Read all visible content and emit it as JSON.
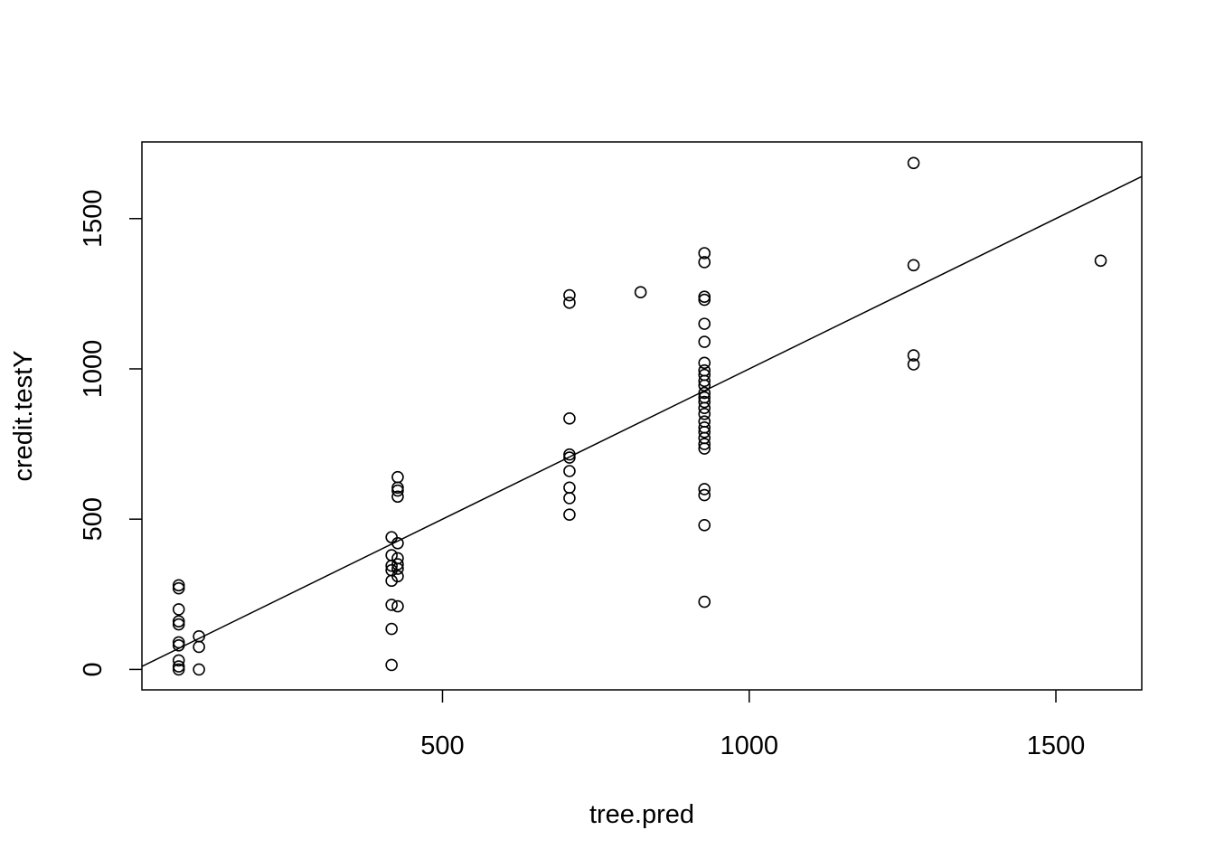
{
  "chart_data": {
    "type": "scatter",
    "title": "",
    "xlabel": "tree.pred",
    "ylabel": "credit.testY",
    "xlim": [
      10,
      1640
    ],
    "ylim": [
      -68,
      1755
    ],
    "x_ticks": [
      500,
      1000,
      1500
    ],
    "y_ticks": [
      0,
      500,
      1000,
      1500
    ],
    "x_tick_labels": [
      "500",
      "1000",
      "1500"
    ],
    "y_tick_labels": [
      "0",
      "500",
      "1000",
      "1500"
    ],
    "grid": false,
    "legend": "none",
    "fit_line": {
      "intercept": 0,
      "slope": 1,
      "color": "#000000"
    },
    "point_color": "#000000",
    "points": [
      {
        "x": 70,
        "y": 280
      },
      {
        "x": 70,
        "y": 270
      },
      {
        "x": 70,
        "y": 200
      },
      {
        "x": 70,
        "y": 160
      },
      {
        "x": 70,
        "y": 150
      },
      {
        "x": 70,
        "y": 90
      },
      {
        "x": 70,
        "y": 80
      },
      {
        "x": 70,
        "y": 30
      },
      {
        "x": 70,
        "y": 10
      },
      {
        "x": 70,
        "y": 0
      },
      {
        "x": 103,
        "y": 110
      },
      {
        "x": 103,
        "y": 75
      },
      {
        "x": 103,
        "y": 0
      },
      {
        "x": 417,
        "y": 440
      },
      {
        "x": 417,
        "y": 380
      },
      {
        "x": 417,
        "y": 345
      },
      {
        "x": 417,
        "y": 330
      },
      {
        "x": 417,
        "y": 295
      },
      {
        "x": 417,
        "y": 215
      },
      {
        "x": 417,
        "y": 135
      },
      {
        "x": 417,
        "y": 15
      },
      {
        "x": 427,
        "y": 640
      },
      {
        "x": 427,
        "y": 605
      },
      {
        "x": 427,
        "y": 595
      },
      {
        "x": 427,
        "y": 575
      },
      {
        "x": 427,
        "y": 420
      },
      {
        "x": 427,
        "y": 370
      },
      {
        "x": 427,
        "y": 350
      },
      {
        "x": 427,
        "y": 335
      },
      {
        "x": 427,
        "y": 310
      },
      {
        "x": 427,
        "y": 210
      },
      {
        "x": 707,
        "y": 1245
      },
      {
        "x": 707,
        "y": 1220
      },
      {
        "x": 707,
        "y": 835
      },
      {
        "x": 707,
        "y": 715
      },
      {
        "x": 707,
        "y": 705
      },
      {
        "x": 707,
        "y": 660
      },
      {
        "x": 707,
        "y": 605
      },
      {
        "x": 707,
        "y": 570
      },
      {
        "x": 707,
        "y": 515
      },
      {
        "x": 823,
        "y": 1255
      },
      {
        "x": 927,
        "y": 1385
      },
      {
        "x": 927,
        "y": 1355
      },
      {
        "x": 927,
        "y": 1240
      },
      {
        "x": 927,
        "y": 1230
      },
      {
        "x": 927,
        "y": 1150
      },
      {
        "x": 927,
        "y": 1090
      },
      {
        "x": 927,
        "y": 1020
      },
      {
        "x": 927,
        "y": 995
      },
      {
        "x": 927,
        "y": 980
      },
      {
        "x": 927,
        "y": 960
      },
      {
        "x": 927,
        "y": 945
      },
      {
        "x": 927,
        "y": 920
      },
      {
        "x": 927,
        "y": 905
      },
      {
        "x": 927,
        "y": 890
      },
      {
        "x": 927,
        "y": 870
      },
      {
        "x": 927,
        "y": 850
      },
      {
        "x": 927,
        "y": 825
      },
      {
        "x": 927,
        "y": 805
      },
      {
        "x": 927,
        "y": 790
      },
      {
        "x": 927,
        "y": 770
      },
      {
        "x": 927,
        "y": 750
      },
      {
        "x": 927,
        "y": 735
      },
      {
        "x": 927,
        "y": 600
      },
      {
        "x": 927,
        "y": 580
      },
      {
        "x": 927,
        "y": 480
      },
      {
        "x": 927,
        "y": 225
      },
      {
        "x": 1268,
        "y": 1685
      },
      {
        "x": 1268,
        "y": 1345
      },
      {
        "x": 1268,
        "y": 1045
      },
      {
        "x": 1268,
        "y": 1015
      },
      {
        "x": 1573,
        "y": 1360
      }
    ]
  }
}
